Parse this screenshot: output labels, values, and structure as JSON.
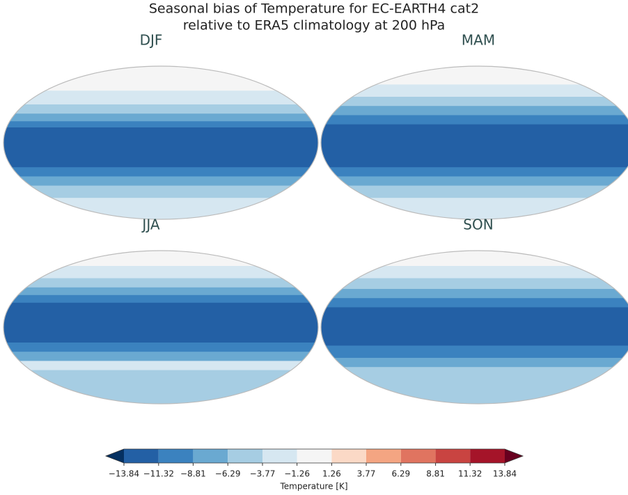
{
  "title": [
    "Seasonal bias of Temperature for EC-EARTH4 cat2",
    "relative to ERA5 climatology at 200 hPa"
  ],
  "panels": [
    {
      "title": "DJF"
    },
    {
      "title": "MAM"
    },
    {
      "title": "JJA"
    },
    {
      "title": "SON"
    }
  ],
  "colorbar": {
    "label": "Temperature [K]",
    "extend": "both",
    "ticks": [
      {
        "value": -13.84,
        "label": "−13.84"
      },
      {
        "value": -11.32,
        "label": "−11.32"
      },
      {
        "value": -8.81,
        "label": "−8.81"
      },
      {
        "value": -6.29,
        "label": "−6.29"
      },
      {
        "value": -3.77,
        "label": "−3.77"
      },
      {
        "value": -1.26,
        "label": "−1.26"
      },
      1.26,
      3.77,
      6.29,
      8.81,
      11.32,
      13.84
    ],
    "colors": [
      "#2360a5",
      "#3b82bf",
      "#6aa9d1",
      "#a6cde3",
      "#d6e7f1",
      "#f5f5f5",
      "#fbd9c6",
      "#f4a582",
      "#e07460",
      "#c94441",
      "#a51429"
    ],
    "under_color": "#053061",
    "over_color": "#67001f"
  }
}
